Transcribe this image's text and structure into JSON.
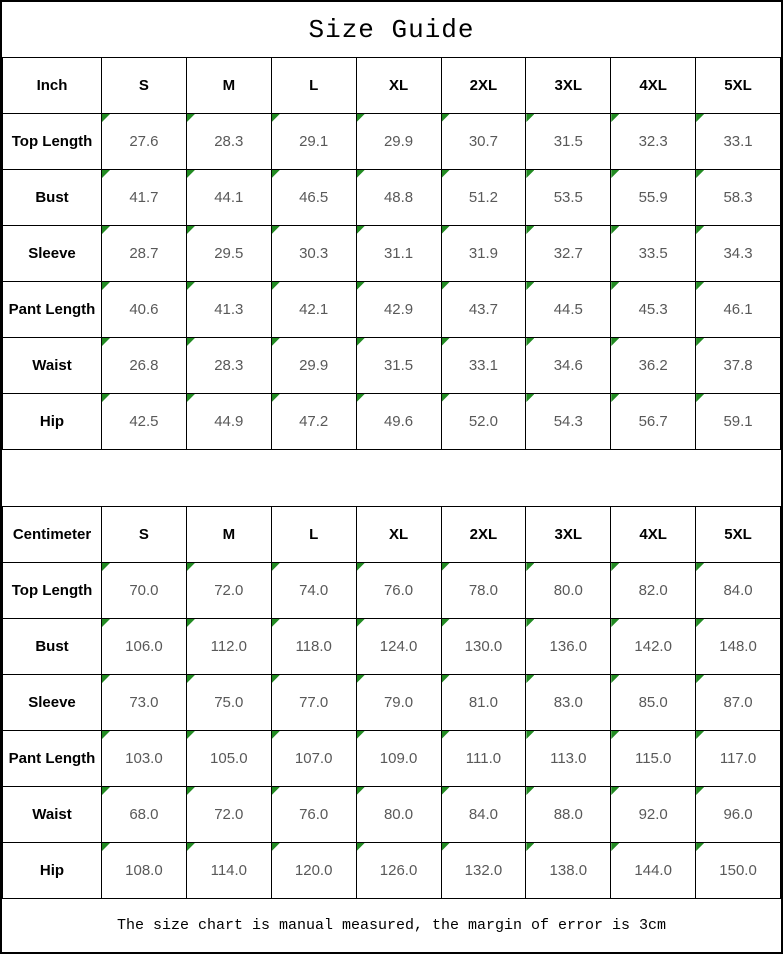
{
  "title": "Size Guide",
  "footer_note": "The size chart is manual measured, the margin of error is 3cm",
  "colors": {
    "border": "#000000",
    "label_text": "#000000",
    "value_text": "#595959",
    "corner_marker_green": "#228B22",
    "background": "#ffffff"
  },
  "chart_data": [
    {
      "type": "table",
      "title": "Size Guide (Inch)",
      "unit_header": "Inch",
      "columns": [
        "S",
        "M",
        "L",
        "XL",
        "2XL",
        "3XL",
        "4XL",
        "5XL"
      ],
      "rows": [
        {
          "label": "Top Length",
          "values": [
            "27.6",
            "28.3",
            "29.1",
            "29.9",
            "30.7",
            "31.5",
            "32.3",
            "33.1"
          ]
        },
        {
          "label": "Bust",
          "values": [
            "41.7",
            "44.1",
            "46.5",
            "48.8",
            "51.2",
            "53.5",
            "55.9",
            "58.3"
          ]
        },
        {
          "label": "Sleeve",
          "values": [
            "28.7",
            "29.5",
            "30.3",
            "31.1",
            "31.9",
            "32.7",
            "33.5",
            "34.3"
          ]
        },
        {
          "label": "Pant Length",
          "values": [
            "40.6",
            "41.3",
            "42.1",
            "42.9",
            "43.7",
            "44.5",
            "45.3",
            "46.1"
          ]
        },
        {
          "label": "Waist",
          "values": [
            "26.8",
            "28.3",
            "29.9",
            "31.5",
            "33.1",
            "34.6",
            "36.2",
            "37.8"
          ]
        },
        {
          "label": "Hip",
          "values": [
            "42.5",
            "44.9",
            "47.2",
            "49.6",
            "52.0",
            "54.3",
            "56.7",
            "59.1"
          ]
        }
      ]
    },
    {
      "type": "table",
      "title": "Size Guide (Centimeter)",
      "unit_header": "Centimeter",
      "columns": [
        "S",
        "M",
        "L",
        "XL",
        "2XL",
        "3XL",
        "4XL",
        "5XL"
      ],
      "rows": [
        {
          "label": "Top Length",
          "values": [
            "70.0",
            "72.0",
            "74.0",
            "76.0",
            "78.0",
            "80.0",
            "82.0",
            "84.0"
          ]
        },
        {
          "label": "Bust",
          "values": [
            "106.0",
            "112.0",
            "118.0",
            "124.0",
            "130.0",
            "136.0",
            "142.0",
            "148.0"
          ]
        },
        {
          "label": "Sleeve",
          "values": [
            "73.0",
            "75.0",
            "77.0",
            "79.0",
            "81.0",
            "83.0",
            "85.0",
            "87.0"
          ]
        },
        {
          "label": "Pant Length",
          "values": [
            "103.0",
            "105.0",
            "107.0",
            "109.0",
            "111.0",
            "113.0",
            "115.0",
            "117.0"
          ]
        },
        {
          "label": "Waist",
          "values": [
            "68.0",
            "72.0",
            "76.0",
            "80.0",
            "84.0",
            "88.0",
            "92.0",
            "96.0"
          ]
        },
        {
          "label": "Hip",
          "values": [
            "108.0",
            "114.0",
            "120.0",
            "126.0",
            "132.0",
            "138.0",
            "144.0",
            "150.0"
          ]
        }
      ]
    }
  ]
}
